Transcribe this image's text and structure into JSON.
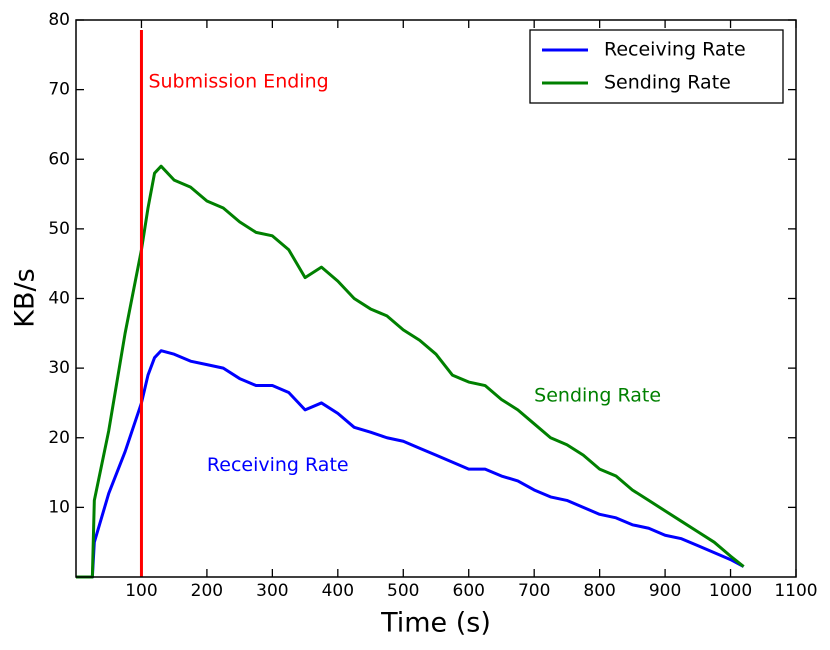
{
  "chart_data": {
    "type": "line",
    "xlabel": "Time (s)",
    "ylabel": "KB/s",
    "xlim": [
      0,
      1100
    ],
    "ylim": [
      0,
      80
    ],
    "xticks": [
      100,
      200,
      300,
      400,
      500,
      600,
      700,
      800,
      900,
      1000,
      1100
    ],
    "yticks": [
      10,
      20,
      30,
      40,
      50,
      60,
      70,
      80
    ],
    "legend": "upper right",
    "vline": {
      "x": 100,
      "label": "Submission Ending",
      "color": "#ff0000"
    },
    "annotations": [
      {
        "text": "Sending Rate",
        "x": 700,
        "y": 26,
        "color": "#008000"
      },
      {
        "text": "Receiving Rate",
        "x": 200,
        "y": 16,
        "color": "#0000ff"
      }
    ],
    "x": [
      0,
      25,
      28,
      50,
      75,
      100,
      110,
      120,
      130,
      150,
      175,
      200,
      225,
      250,
      275,
      300,
      325,
      350,
      375,
      400,
      425,
      450,
      475,
      500,
      525,
      550,
      575,
      600,
      625,
      650,
      675,
      700,
      725,
      750,
      775,
      800,
      825,
      850,
      875,
      900,
      925,
      950,
      975,
      1000,
      1020
    ],
    "series": [
      {
        "name": "Receiving Rate",
        "color": "#0000ff",
        "values": [
          0,
          0,
          5,
          12,
          18,
          25,
          29,
          31.5,
          32.5,
          32,
          31,
          30.5,
          30,
          28.5,
          27.5,
          27.5,
          26.5,
          24,
          25,
          23.5,
          21.5,
          20.8,
          20,
          19.5,
          18.5,
          17.5,
          16.5,
          15.5,
          15.5,
          14.5,
          13.8,
          12.5,
          11.5,
          11,
          10,
          9,
          8.5,
          7.5,
          7,
          6,
          5.5,
          4.5,
          3.5,
          2.5,
          1.5
        ]
      },
      {
        "name": "Sending Rate",
        "color": "#008000",
        "values": [
          0,
          0,
          11,
          21,
          35,
          47,
          53,
          58,
          59,
          57,
          56,
          54,
          53,
          51,
          49.5,
          49,
          47,
          43,
          44.5,
          42.5,
          40,
          38.5,
          37.5,
          35.5,
          34,
          32,
          29,
          28,
          27.5,
          25.5,
          24,
          22,
          20,
          19,
          17.5,
          15.5,
          14.5,
          12.5,
          11,
          9.5,
          8,
          6.5,
          5,
          3,
          1.5
        ]
      }
    ]
  }
}
